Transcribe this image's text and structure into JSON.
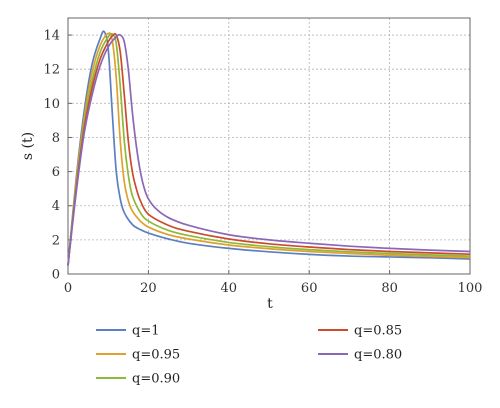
{
  "chart_data": {
    "type": "line",
    "title": "",
    "xlabel": "t",
    "ylabel": "s (t)",
    "xlim": [
      0,
      100
    ],
    "ylim": [
      0,
      15
    ],
    "x_ticks": [
      0,
      20,
      40,
      60,
      80,
      100
    ],
    "y_ticks": [
      0,
      2,
      4,
      6,
      8,
      10,
      12,
      14
    ],
    "grid": true,
    "legend_position": "bottom",
    "series": [
      {
        "name": "q=1",
        "color": "#5b7fc0",
        "x": [
          0,
          2,
          4,
          6,
          8,
          9,
          10,
          11,
          12,
          13,
          14,
          16,
          18,
          20,
          25,
          30,
          40,
          50,
          60,
          70,
          80,
          90,
          100
        ],
        "y": [
          0.5,
          5.5,
          9.5,
          12.3,
          13.8,
          14.2,
          13.2,
          9.5,
          6.0,
          4.4,
          3.6,
          2.9,
          2.6,
          2.4,
          2.05,
          1.8,
          1.5,
          1.3,
          1.15,
          1.05,
          1.0,
          0.95,
          0.88
        ]
      },
      {
        "name": "q=0.95",
        "color": "#e0a030",
        "x": [
          0,
          2,
          4,
          6,
          8,
          10,
          11,
          12,
          13,
          14,
          15,
          16,
          18,
          20,
          25,
          30,
          40,
          50,
          60,
          70,
          80,
          90,
          100
        ],
        "y": [
          0.5,
          5.3,
          9.1,
          11.8,
          13.4,
          14.1,
          13.7,
          11.5,
          7.8,
          5.4,
          4.3,
          3.7,
          3.1,
          2.75,
          2.3,
          2.05,
          1.7,
          1.48,
          1.32,
          1.2,
          1.1,
          1.03,
          0.96
        ]
      },
      {
        "name": "q=0.90",
        "color": "#8db838",
        "x": [
          0,
          2,
          4,
          6,
          8,
          10,
          11,
          12,
          13,
          14,
          15,
          16,
          18,
          20,
          25,
          30,
          40,
          50,
          60,
          70,
          80,
          90,
          100
        ],
        "y": [
          0.5,
          5.1,
          8.8,
          11.3,
          13.0,
          13.9,
          14.05,
          13.5,
          11.0,
          7.8,
          5.8,
          4.6,
          3.6,
          3.1,
          2.55,
          2.25,
          1.85,
          1.6,
          1.43,
          1.3,
          1.2,
          1.12,
          1.05
        ]
      },
      {
        "name": "q=0.85",
        "color": "#cc4b2e",
        "x": [
          0,
          2,
          4,
          6,
          8,
          10,
          11,
          12,
          13,
          14,
          15,
          16,
          17,
          18,
          20,
          25,
          30,
          40,
          50,
          60,
          70,
          80,
          90,
          100
        ],
        "y": [
          0.5,
          4.9,
          8.5,
          10.9,
          12.6,
          13.6,
          13.95,
          14.0,
          13.0,
          10.5,
          7.8,
          6.0,
          5.0,
          4.3,
          3.5,
          2.85,
          2.5,
          2.05,
          1.77,
          1.58,
          1.43,
          1.32,
          1.24,
          1.16
        ]
      },
      {
        "name": "q=0.80",
        "color": "#8a68b8",
        "x": [
          0,
          2,
          4,
          6,
          8,
          10,
          12,
          13,
          14,
          15,
          16,
          17,
          18,
          19,
          20,
          22,
          25,
          30,
          40,
          50,
          60,
          70,
          80,
          90,
          100
        ],
        "y": [
          0.5,
          4.7,
          8.2,
          10.5,
          12.2,
          13.3,
          13.9,
          14.0,
          13.6,
          12.0,
          9.5,
          7.5,
          6.0,
          5.0,
          4.4,
          3.8,
          3.3,
          2.85,
          2.3,
          2.0,
          1.8,
          1.63,
          1.5,
          1.4,
          1.32
        ]
      }
    ]
  }
}
